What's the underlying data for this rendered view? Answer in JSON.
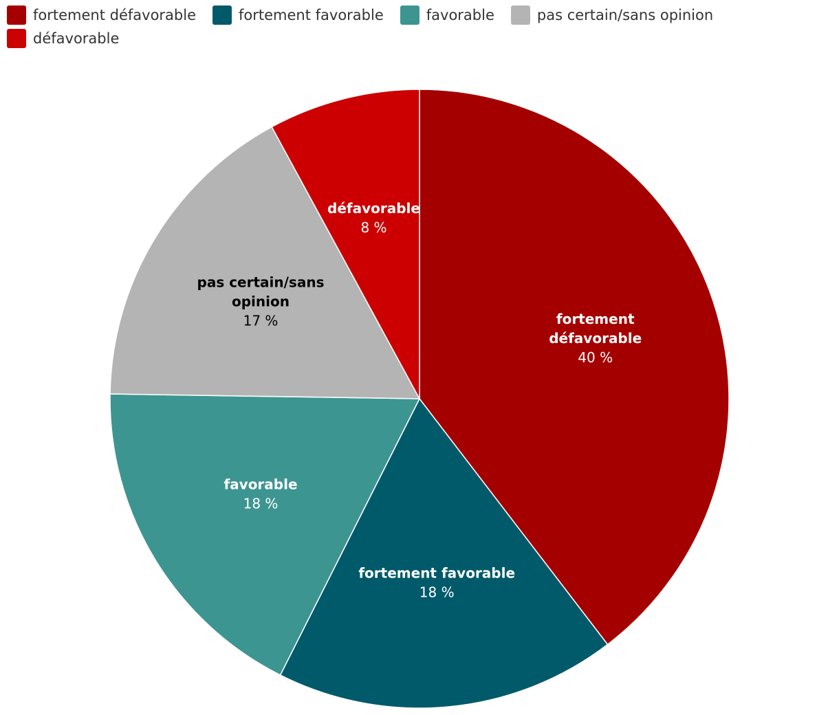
{
  "chart_data": {
    "type": "pie",
    "title": "",
    "unit": "%",
    "legend_position": "top-left",
    "start_angle_deg": 0,
    "direction": "clockwise",
    "slices": [
      {
        "label": "fortement défavorable",
        "label_lines": [
          "fortement",
          "défavorable"
        ],
        "value": 40,
        "value_label": "40 %",
        "color": "#a50000",
        "label_color": "#ffffff"
      },
      {
        "label": "fortement favorable",
        "label_lines": [
          "fortement favorable"
        ],
        "value": 18,
        "value_label": "18 %",
        "color": "#005a6a",
        "label_color": "#ffffff"
      },
      {
        "label": "favorable",
        "label_lines": [
          "favorable"
        ],
        "value": 18,
        "value_label": "18 %",
        "color": "#3d9591",
        "label_color": "#ffffff"
      },
      {
        "label": "pas certain/sans opinion",
        "label_lines": [
          "pas certain/sans",
          "opinion"
        ],
        "value": 17,
        "value_label": "17 %",
        "color": "#b4b4b4",
        "label_color": "#000000"
      },
      {
        "label": "défavorable",
        "label_lines": [
          "défavorable"
        ],
        "value": 8,
        "value_label": "8 %",
        "color": "#cc0000",
        "label_color": "#ffffff"
      }
    ]
  }
}
